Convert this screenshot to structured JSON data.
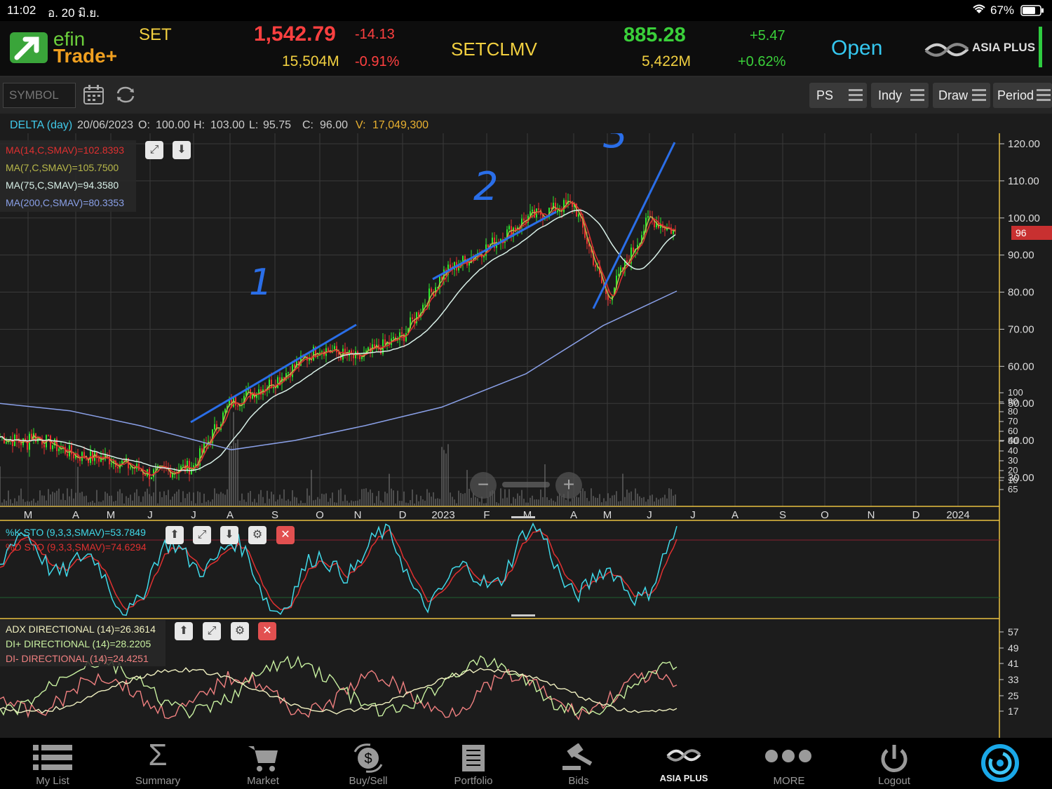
{
  "status_bar": {
    "time": "11:02",
    "date": "อ. 20 มิ.ย.",
    "battery": "67%"
  },
  "header": {
    "brand_top": "efin",
    "brand_bottom": "Trade+",
    "index1": {
      "name": "SET",
      "value": "1,542.79",
      "change": "-14.13",
      "volume": "15,504M",
      "change_pct": "-0.91%"
    },
    "index2": {
      "name": "SETCLMV",
      "value": "885.28",
      "change": "+5.47",
      "volume": "5,422M",
      "change_pct": "+0.62%"
    },
    "market_status": "Open",
    "broker": "ASIA PLUS"
  },
  "toolbar": {
    "symbol_placeholder": "SYMBOL",
    "buttons": [
      {
        "label": "PS"
      },
      {
        "label": "Indy"
      },
      {
        "label": "Draw"
      },
      {
        "label": "Period"
      }
    ]
  },
  "info": {
    "title": "DELTA (day)",
    "date": "20/06/2023",
    "o_label": "O:",
    "o": "100.00",
    "h_label": "H:",
    "h": "103.00",
    "l_label": "L:",
    "l": "95.75",
    "c_label": "C:",
    "c": "96.00",
    "v_label": "V:",
    "v": "17,049,300"
  },
  "legend_main": [
    {
      "text": "MA(14,C,SMAV)=102.8393",
      "color": "#e03030"
    },
    {
      "text": "MA(7,C,SMAV)=105.7500",
      "color": "#b8b84a"
    },
    {
      "text": "MA(75,C,SMAV)=94.3580",
      "color": "#d8f0e8"
    },
    {
      "text": "MA(200,C,SMAV)=80.3353",
      "color": "#8aa0e8"
    }
  ],
  "legend_sto": [
    {
      "text": "%K STO (9,3,3,SMAV)=53.7849",
      "color": "#40d8e8"
    },
    {
      "text": "%D STO (9,3,3,SMAV)=74.6294",
      "color": "#e03030"
    }
  ],
  "legend_adx": [
    {
      "text": "ADX DIRECTIONAL (14)=26.3614",
      "color": "#f0f0c0"
    },
    {
      "text": "DI+ DIRECTIONAL (14)=28.2205",
      "color": "#c8f0a0"
    },
    {
      "text": "DI- DIRECTIONAL (14)=24.4251",
      "color": "#f08080"
    }
  ],
  "last_price_tag": "96",
  "annotations": [
    "1",
    "2",
    "3"
  ],
  "chart_data": {
    "type": "candlestick",
    "symbol": "DELTA",
    "period": "day",
    "ylim": [
      25,
      123
    ],
    "y_ticks": [
      "120.00",
      "110.00",
      "100.00",
      "90.00",
      "80.00",
      "70.00",
      "60.00",
      "50.00",
      "40.00",
      "30.00"
    ],
    "x_ticks": [
      "M",
      "A",
      "M",
      "J",
      "J",
      "A",
      "S",
      "O",
      "N",
      "D",
      "2023",
      "F",
      "M",
      "A",
      "M",
      "J",
      "J",
      "A",
      "S",
      "O",
      "N",
      "D",
      "2024"
    ],
    "approx_close_path": [
      {
        "x": "M",
        "y": 42
      },
      {
        "x": "A",
        "y": 36
      },
      {
        "x": "M",
        "y": 35
      },
      {
        "x": "J",
        "y": 31
      },
      {
        "x": "J",
        "y": 33
      },
      {
        "x": "A",
        "y": 50
      },
      {
        "x": "S",
        "y": 56
      },
      {
        "x": "O",
        "y": 65
      },
      {
        "x": "N",
        "y": 62
      },
      {
        "x": "D",
        "y": 68
      },
      {
        "x": "2023",
        "y": 85
      },
      {
        "x": "F",
        "y": 92
      },
      {
        "x": "M",
        "y": 100
      },
      {
        "x": "A",
        "y": 104
      },
      {
        "x": "M",
        "y": 78
      },
      {
        "x": "J",
        "y": 100
      },
      {
        "x": "J",
        "y": 96
      }
    ],
    "stochastic_ticks": [
      "100",
      "90",
      "80",
      "70",
      "60",
      "50",
      "40",
      "30",
      "20",
      "10",
      "65"
    ],
    "adx_ticks": [
      "57",
      "49",
      "41",
      "33",
      "25",
      "17"
    ]
  },
  "bottom_nav": [
    {
      "label": "My List",
      "icon": "list-icon"
    },
    {
      "label": "Summary",
      "icon": "sigma-icon"
    },
    {
      "label": "Market",
      "icon": "cart-icon"
    },
    {
      "label": "Buy/Sell",
      "icon": "buysell-icon"
    },
    {
      "label": "Portfolio",
      "icon": "portfolio-icon"
    },
    {
      "label": "Bids",
      "icon": "gavel-icon"
    },
    {
      "label": "ASIA PLUS",
      "icon": "asiaplus-icon"
    },
    {
      "label": "MORE",
      "icon": "more-icon"
    },
    {
      "label": "Logout",
      "icon": "power-icon"
    }
  ]
}
